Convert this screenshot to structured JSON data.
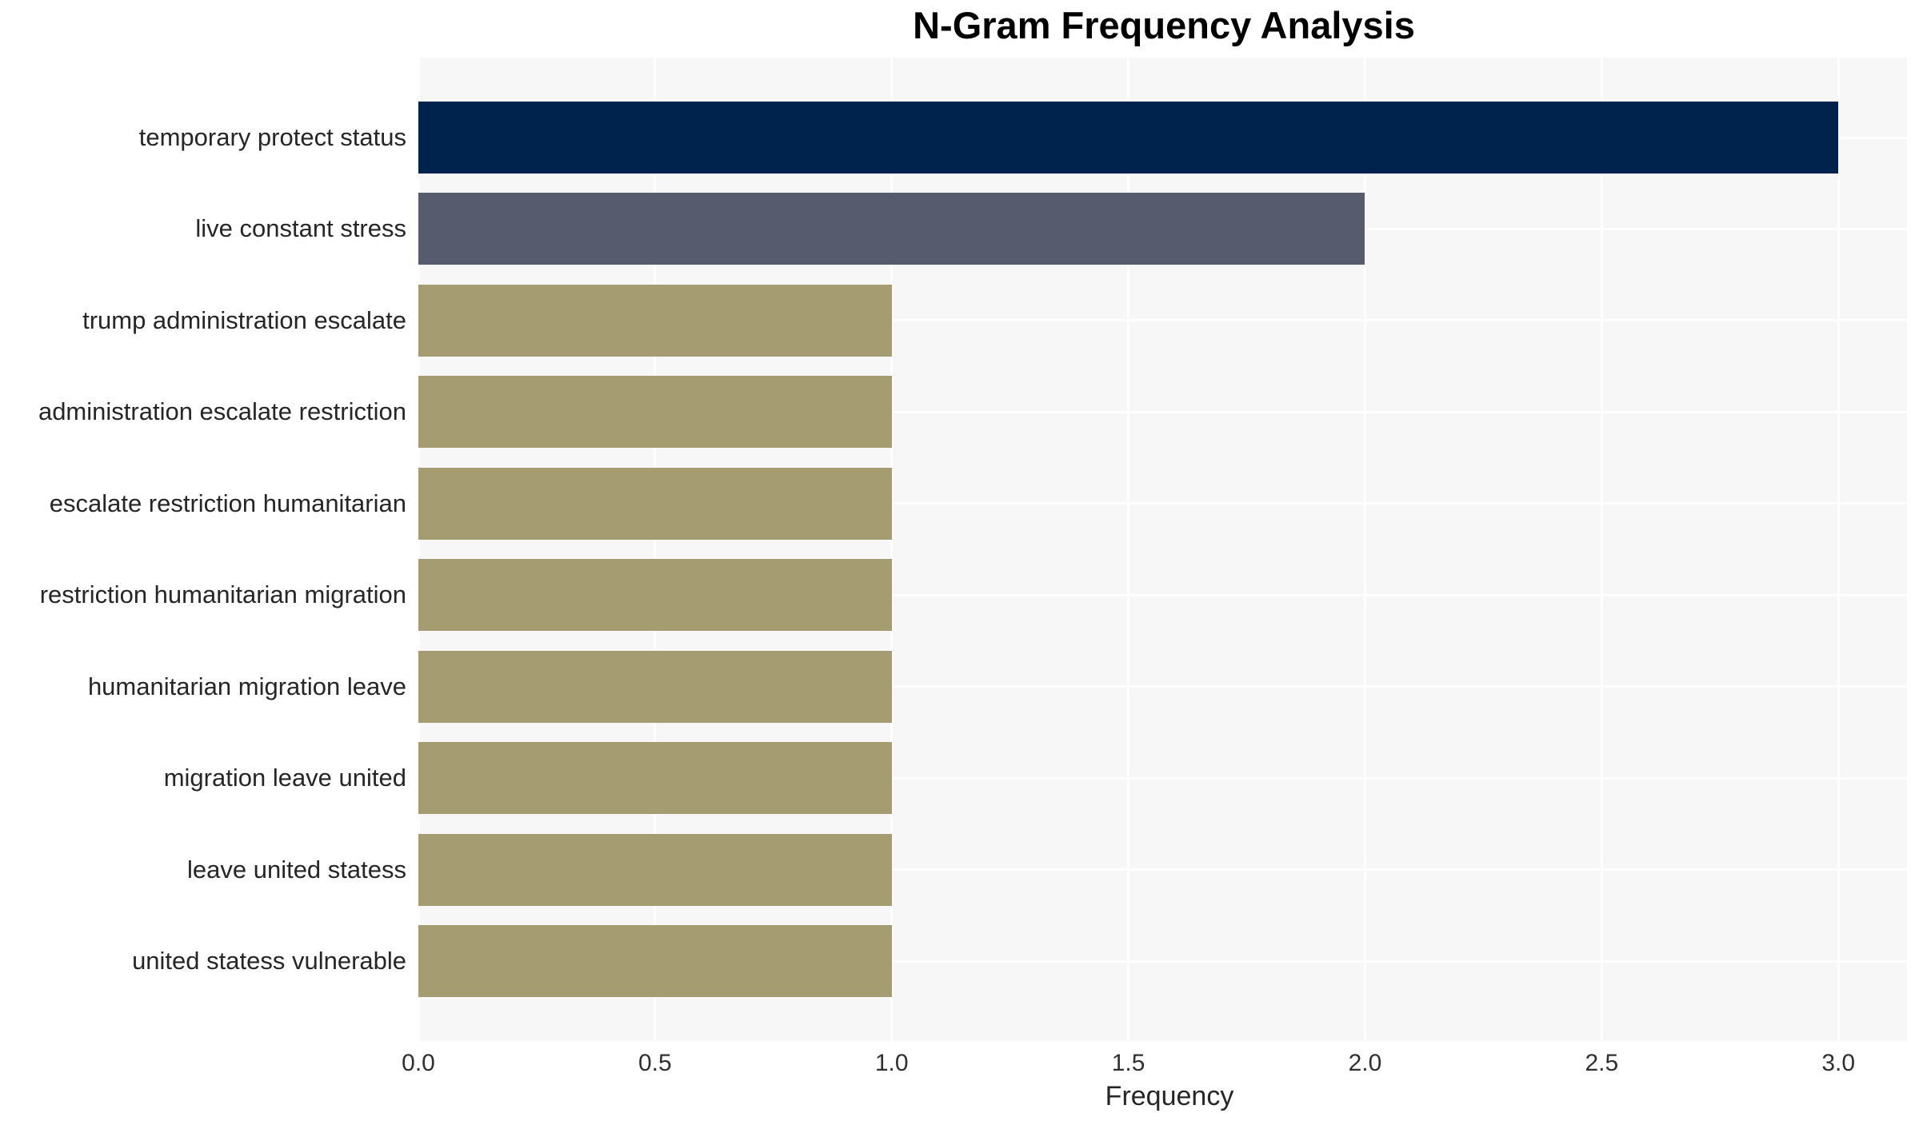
{
  "chart_data": {
    "type": "bar",
    "orientation": "horizontal",
    "title": "N-Gram Frequency Analysis",
    "xlabel": "Frequency",
    "ylabel": "",
    "categories": [
      "temporary protect status",
      "live constant stress",
      "trump administration escalate",
      "administration escalate restriction",
      "escalate restriction humanitarian",
      "restriction humanitarian migration",
      "humanitarian migration leave",
      "migration leave united",
      "leave united statess",
      "united statess vulnerable"
    ],
    "values": [
      3,
      2,
      1,
      1,
      1,
      1,
      1,
      1,
      1,
      1
    ],
    "bar_colors": [
      "#00234e",
      "#565c6d",
      "#a69c71",
      "#a69c71",
      "#a69c71",
      "#a69c71",
      "#a69c71",
      "#a69c71",
      "#a69c71",
      "#a69c71"
    ],
    "x_tick_labels": [
      "0.0",
      "0.5",
      "1.0",
      "1.5",
      "2.0",
      "2.5",
      "3.0"
    ],
    "x_tick_values": [
      0,
      0.5,
      1,
      1.5,
      2,
      2.5,
      3
    ],
    "xlim": [
      0,
      3.145
    ],
    "grid": "on",
    "legend": "none",
    "plot_background": "#f7f7f7",
    "grid_color": "#ffffff",
    "title_color": "#000000",
    "label_color": "#262626",
    "tick_color": "#303030"
  }
}
